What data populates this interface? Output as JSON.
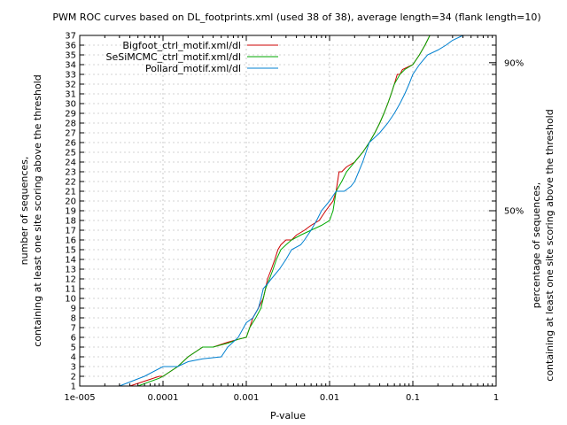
{
  "chart_data": {
    "type": "line",
    "title": "PWM ROC curves based on DL_footprints.xml (used 38 of 38), average length=34 (flank length=10)",
    "xlabel": "P-value",
    "ylabel_line1": "number of sequences,",
    "ylabel_line2": "containing at least one site scoring above the threshold",
    "y2label_line1": "percentage of sequences,",
    "y2label_line2": "containing at least one site scoring above the threshold",
    "xscale": "log",
    "xlim": [
      1e-05,
      1
    ],
    "ylim": [
      1,
      37
    ],
    "grid": true,
    "legend_position": "top-right",
    "x_ticks": [
      {
        "v": 1e-05,
        "label": "1e-005"
      },
      {
        "v": 0.0001,
        "label": "0.0001"
      },
      {
        "v": 0.001,
        "label": "0.001"
      },
      {
        "v": 0.01,
        "label": "0.01"
      },
      {
        "v": 0.1,
        "label": "0.1"
      },
      {
        "v": 1,
        "label": "1"
      }
    ],
    "y_ticks": [
      1,
      2,
      3,
      4,
      5,
      6,
      7,
      8,
      9,
      10,
      11,
      12,
      13,
      14,
      15,
      16,
      17,
      18,
      19,
      20,
      21,
      22,
      23,
      24,
      25,
      26,
      27,
      28,
      29,
      30,
      31,
      32,
      33,
      34,
      35,
      36,
      37
    ],
    "y2_ticks": [
      {
        "v": 34.2,
        "label": "90%"
      },
      {
        "v": 19,
        "label": "50%"
      }
    ],
    "series": [
      {
        "name": "Bigfoot_ctrl_motif.xml/dl",
        "color": "#cc0000",
        "x": [
          4e-05,
          9e-05,
          0.0001,
          0.00015,
          0.0002,
          0.0003,
          0.0004,
          0.0006,
          0.0008,
          0.001,
          0.0011,
          0.0012,
          0.0014,
          0.0016,
          0.0017,
          0.0018,
          0.002,
          0.0022,
          0.0024,
          0.0026,
          0.003,
          0.0035,
          0.004,
          0.005,
          0.006,
          0.0075,
          0.009,
          0.011,
          0.012,
          0.013,
          0.014,
          0.016,
          0.02,
          0.025,
          0.03,
          0.035,
          0.04,
          0.045,
          0.05,
          0.055,
          0.06,
          0.065,
          0.07,
          0.075,
          0.1,
          0.12,
          0.14,
          0.16,
          0.17
        ],
        "y": [
          1,
          2,
          2,
          3,
          4,
          5,
          5,
          5.5,
          5.8,
          6,
          7,
          8,
          9,
          10,
          11,
          12,
          13,
          14,
          15,
          15.5,
          16,
          16,
          16.5,
          17,
          17.5,
          18,
          19,
          20,
          21,
          23,
          23,
          23.5,
          24,
          25,
          26,
          27,
          28,
          29,
          30,
          31,
          32,
          33,
          33,
          33.5,
          34,
          35,
          36,
          37,
          37
        ]
      },
      {
        "name": "SeSiMCMC_ctrl_motif.xml/dl",
        "color": "#00aa00",
        "x": [
          5e-05,
          9e-05,
          0.0001,
          0.00015,
          0.0002,
          0.0003,
          0.0004,
          0.0006,
          0.0008,
          0.001,
          0.0011,
          0.0013,
          0.0015,
          0.0016,
          0.0017,
          0.0019,
          0.0021,
          0.0023,
          0.0026,
          0.003,
          0.0035,
          0.0045,
          0.006,
          0.008,
          0.01,
          0.011,
          0.012,
          0.014,
          0.016,
          0.02,
          0.025,
          0.03,
          0.035,
          0.04,
          0.045,
          0.05,
          0.055,
          0.06,
          0.07,
          0.08,
          0.1,
          0.12,
          0.14,
          0.16,
          0.18
        ],
        "y": [
          1,
          1.8,
          2,
          3,
          4,
          5,
          5,
          5.4,
          5.8,
          6,
          7,
          8,
          9,
          10,
          11,
          12,
          13,
          14,
          15,
          15.5,
          16,
          16.5,
          17,
          17.5,
          18,
          19,
          21,
          22,
          23,
          24,
          25,
          26,
          27,
          28,
          29,
          30,
          31,
          32,
          33,
          33.5,
          34,
          35,
          36,
          37,
          37
        ]
      },
      {
        "name": "Pollard_motif.xml/dl",
        "color": "#0080d0",
        "x": [
          3e-05,
          6e-05,
          0.0001,
          0.00015,
          0.0002,
          0.0003,
          0.0005,
          0.0006,
          0.0008,
          0.001,
          0.0012,
          0.0014,
          0.0015,
          0.0016,
          0.0018,
          0.002,
          0.0025,
          0.003,
          0.0035,
          0.0045,
          0.005,
          0.006,
          0.007,
          0.008,
          0.01,
          0.012,
          0.015,
          0.018,
          0.02,
          0.025,
          0.03,
          0.04,
          0.05,
          0.06,
          0.07,
          0.08,
          0.09,
          0.1,
          0.12,
          0.15,
          0.2,
          0.25,
          0.3,
          0.4
        ],
        "y": [
          1,
          2,
          3,
          3,
          3.5,
          3.8,
          4,
          5,
          6,
          7.5,
          8,
          9,
          10,
          11,
          11.5,
          12,
          13,
          14,
          15,
          15.5,
          16,
          17,
          18,
          19,
          20,
          21,
          21,
          21.5,
          22,
          24,
          26,
          27,
          28,
          29,
          30,
          31,
          32,
          33,
          34,
          35,
          35.5,
          36,
          36.5,
          37
        ]
      }
    ]
  }
}
